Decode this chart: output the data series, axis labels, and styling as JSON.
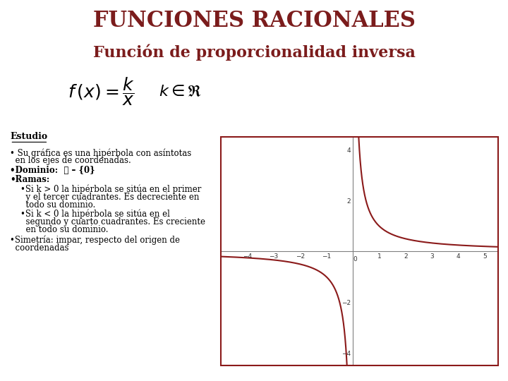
{
  "title1": "FUNCIONES RACIONALES",
  "title2": "Función de proporcionalidad inversa",
  "title1_color": "#7B1C1C",
  "title2_color": "#7B1C1C",
  "bg_color": "#FFFFFF",
  "curve_color": "#8B1A1A",
  "graph_border_color": "#8B1A1A",
  "graph_bg": "#FFFFFF",
  "k": 1,
  "xlim": [
    -5,
    5.5
  ],
  "ylim": [
    -4.5,
    4.5
  ],
  "xticks": [
    -4,
    -3,
    -2,
    -1,
    1,
    2,
    3,
    4,
    5
  ],
  "yticks": [
    -4,
    -2,
    2,
    4
  ]
}
